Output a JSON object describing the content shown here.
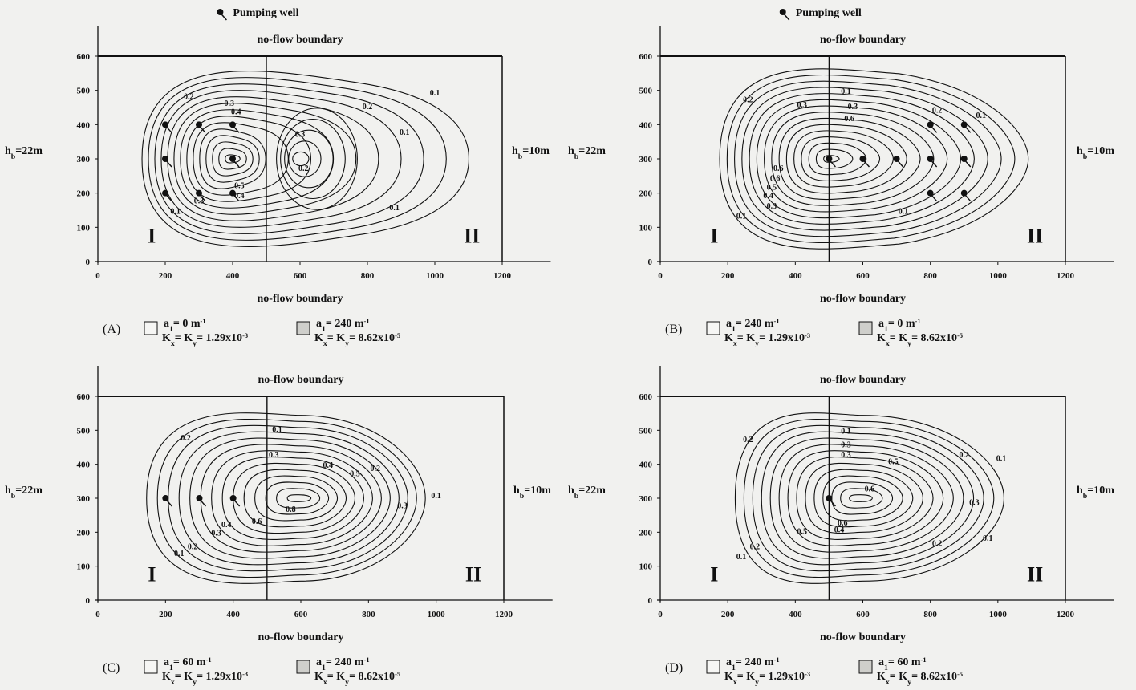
{
  "chart_data": [
    {
      "type": "contour",
      "panel": "(A)",
      "pumping_well_label": "Pumping well",
      "top_boundary": "no-flow boundary",
      "bottom_boundary": "no-flow boundary",
      "left_head": "h",
      "left_head_sub": "b",
      "left_head_val": "=22m",
      "right_head": "h",
      "right_head_sub": "b",
      "right_head_val": "=10m",
      "xlim": [
        0,
        1200
      ],
      "ylim": [
        0,
        600
      ],
      "xticks": [
        0,
        200,
        400,
        600,
        800,
        1000,
        1200
      ],
      "yticks": [
        0,
        100,
        200,
        300,
        400,
        500,
        600
      ],
      "interface_x": 500,
      "zone_labels": [
        "I",
        "II"
      ],
      "wells": [
        [
          200,
          400
        ],
        [
          200,
          300
        ],
        [
          200,
          200
        ],
        [
          300,
          400
        ],
        [
          300,
          200
        ],
        [
          400,
          400
        ],
        [
          400,
          300
        ],
        [
          400,
          200
        ]
      ],
      "centers": [
        {
          "x": 400,
          "y": 300
        },
        {
          "x": 590,
          "y": 300
        }
      ],
      "contour_labels": [
        {
          "x": 270,
          "y": 475,
          "text": "0.2"
        },
        {
          "x": 390,
          "y": 455,
          "text": "0.3"
        },
        {
          "x": 410,
          "y": 430,
          "text": "0.4"
        },
        {
          "x": 1000,
          "y": 485,
          "text": "0.1"
        },
        {
          "x": 800,
          "y": 445,
          "text": "0.2"
        },
        {
          "x": 600,
          "y": 365,
          "text": "0.3"
        },
        {
          "x": 910,
          "y": 370,
          "text": "0.1"
        },
        {
          "x": 610,
          "y": 265,
          "text": "0.2"
        },
        {
          "x": 420,
          "y": 215,
          "text": "0.5"
        },
        {
          "x": 420,
          "y": 185,
          "text": "0.4"
        },
        {
          "x": 300,
          "y": 170,
          "text": "0.3"
        },
        {
          "x": 230,
          "y": 140,
          "text": "0.1"
        },
        {
          "x": 880,
          "y": 150,
          "text": "0.1"
        }
      ],
      "legend": [
        {
          "a": "a",
          "a_sub": "1",
          "a_val": "= 0 m",
          "a_sup": "-1",
          "k": "K",
          "k_sub1": "x",
          "k_mid": "= K",
          "k_sub2": "y",
          "k_val": "= 1.29x10",
          "k_sup": "-3"
        },
        {
          "a": "a",
          "a_sub": "1",
          "a_val": "= 240 m",
          "a_sup": "-1",
          "k": "K",
          "k_sub1": "x",
          "k_mid": "= K",
          "k_sub2": "y",
          "k_val": "= 8.62x10",
          "k_sup": "-5"
        }
      ]
    },
    {
      "type": "contour",
      "panel": "(B)",
      "pumping_well_label": "Pumping well",
      "top_boundary": "no-flow boundary",
      "bottom_boundary": "no-flow boundary",
      "left_head": "h",
      "left_head_sub": "b",
      "left_head_val": "=22m",
      "right_head": "h",
      "right_head_sub": "b",
      "right_head_val": "=10m",
      "xlim": [
        0,
        1200
      ],
      "ylim": [
        0,
        600
      ],
      "xticks": [
        0,
        200,
        400,
        600,
        800,
        1000,
        1200
      ],
      "yticks": [
        0,
        100,
        200,
        300,
        400,
        500,
        600
      ],
      "interface_x": 500,
      "zone_labels": [
        "I",
        "II"
      ],
      "wells": [
        [
          500,
          300
        ],
        [
          600,
          300
        ],
        [
          700,
          300
        ],
        [
          800,
          400
        ],
        [
          800,
          300
        ],
        [
          800,
          200
        ],
        [
          900,
          400
        ],
        [
          900,
          300
        ],
        [
          900,
          200
        ]
      ],
      "centers": [
        {
          "x": 500,
          "y": 300
        }
      ],
      "contour_labels": [
        {
          "x": 260,
          "y": 465,
          "text": "0.2"
        },
        {
          "x": 420,
          "y": 450,
          "text": "0.3"
        },
        {
          "x": 550,
          "y": 490,
          "text": "0.1"
        },
        {
          "x": 570,
          "y": 445,
          "text": "0.3"
        },
        {
          "x": 560,
          "y": 410,
          "text": "0.6"
        },
        {
          "x": 820,
          "y": 435,
          "text": "0.2"
        },
        {
          "x": 950,
          "y": 420,
          "text": "0.1"
        },
        {
          "x": 350,
          "y": 265,
          "text": "0.6"
        },
        {
          "x": 340,
          "y": 235,
          "text": "0.6"
        },
        {
          "x": 330,
          "y": 210,
          "text": "0.5"
        },
        {
          "x": 320,
          "y": 185,
          "text": "0.4"
        },
        {
          "x": 330,
          "y": 155,
          "text": "0.3"
        },
        {
          "x": 240,
          "y": 125,
          "text": "0.1"
        },
        {
          "x": 720,
          "y": 140,
          "text": "0.1"
        }
      ],
      "legend": [
        {
          "a": "a",
          "a_sub": "1",
          "a_val": "= 240 m",
          "a_sup": "-1",
          "k": "K",
          "k_sub1": "x",
          "k_mid": "= K",
          "k_sub2": "y",
          "k_val": "= 1.29x10",
          "k_sup": "-3"
        },
        {
          "a": "a",
          "a_sub": "1",
          "a_val": "= 0 m",
          "a_sup": "-1",
          "k": "K",
          "k_sub1": "x",
          "k_mid": "= K",
          "k_sub2": "y",
          "k_val": "= 8.62x10",
          "k_sup": "-5"
        }
      ]
    },
    {
      "type": "contour",
      "panel": "(C)",
      "top_boundary": "no-flow boundary",
      "bottom_boundary": "no-flow boundary",
      "left_head": "h",
      "left_head_sub": "b",
      "left_head_val": "=22m",
      "right_head": "h",
      "right_head_sub": "b",
      "right_head_val": "=10m",
      "xlim": [
        0,
        1200
      ],
      "ylim": [
        0,
        600
      ],
      "xticks": [
        0,
        200,
        400,
        600,
        800,
        1000,
        1200
      ],
      "yticks": [
        0,
        100,
        200,
        300,
        400,
        500,
        600
      ],
      "interface_x": 500,
      "zone_labels": [
        "I",
        "II"
      ],
      "wells": [
        [
          200,
          300
        ],
        [
          300,
          300
        ],
        [
          400,
          300
        ]
      ],
      "centers": [
        {
          "x": 600,
          "y": 300
        }
      ],
      "contour_labels": [
        {
          "x": 260,
          "y": 470,
          "text": "0.2"
        },
        {
          "x": 530,
          "y": 495,
          "text": "0.1"
        },
        {
          "x": 520,
          "y": 420,
          "text": "0.3"
        },
        {
          "x": 680,
          "y": 390,
          "text": "0.4"
        },
        {
          "x": 760,
          "y": 365,
          "text": "0.5"
        },
        {
          "x": 820,
          "y": 380,
          "text": "0.2"
        },
        {
          "x": 1000,
          "y": 300,
          "text": "0.1"
        },
        {
          "x": 900,
          "y": 270,
          "text": "0.3"
        },
        {
          "x": 570,
          "y": 260,
          "text": "0.8"
        },
        {
          "x": 470,
          "y": 225,
          "text": "0.6"
        },
        {
          "x": 380,
          "y": 215,
          "text": "0.4"
        },
        {
          "x": 350,
          "y": 190,
          "text": "0.3"
        },
        {
          "x": 280,
          "y": 150,
          "text": "0.2"
        },
        {
          "x": 240,
          "y": 130,
          "text": "0.1"
        }
      ],
      "legend": [
        {
          "a": "a",
          "a_sub": "1",
          "a_val": "= 60 m",
          "a_sup": "-1",
          "k": "K",
          "k_sub1": "x",
          "k_mid": "= K",
          "k_sub2": "y",
          "k_val": "= 1.29x10",
          "k_sup": "-3"
        },
        {
          "a": "a",
          "a_sub": "1",
          "a_val": "= 240 m",
          "a_sup": "-1",
          "k": "K",
          "k_sub1": "x",
          "k_mid": "= K",
          "k_sub2": "y",
          "k_val": "= 8.62x10",
          "k_sup": "-5"
        }
      ]
    },
    {
      "type": "contour",
      "panel": "(D)",
      "top_boundary": "no-flow boundary",
      "bottom_boundary": "no-flow boundary",
      "left_head": "h",
      "left_head_sub": "b",
      "left_head_val": "=22m",
      "right_head": "h",
      "right_head_sub": "b",
      "right_head_val": "=10m",
      "xlim": [
        0,
        1200
      ],
      "ylim": [
        0,
        600
      ],
      "xticks": [
        0,
        200,
        400,
        600,
        800,
        1000,
        1200
      ],
      "yticks": [
        0,
        100,
        200,
        300,
        400,
        500,
        600
      ],
      "interface_x": 500,
      "zone_labels": [
        "I",
        "II"
      ],
      "wells": [
        [
          500,
          300
        ]
      ],
      "centers": [
        {
          "x": 600,
          "y": 300
        }
      ],
      "contour_labels": [
        {
          "x": 260,
          "y": 465,
          "text": "0.2"
        },
        {
          "x": 550,
          "y": 490,
          "text": "0.1"
        },
        {
          "x": 550,
          "y": 450,
          "text": "0.3"
        },
        {
          "x": 550,
          "y": 420,
          "text": "0.3"
        },
        {
          "x": 690,
          "y": 400,
          "text": "0.5"
        },
        {
          "x": 900,
          "y": 420,
          "text": "0.2"
        },
        {
          "x": 1010,
          "y": 410,
          "text": "0.1"
        },
        {
          "x": 620,
          "y": 320,
          "text": "0.6"
        },
        {
          "x": 930,
          "y": 280,
          "text": "0.3"
        },
        {
          "x": 540,
          "y": 220,
          "text": "0.6"
        },
        {
          "x": 530,
          "y": 200,
          "text": "0.4"
        },
        {
          "x": 420,
          "y": 195,
          "text": "0.5"
        },
        {
          "x": 280,
          "y": 150,
          "text": "0.2"
        },
        {
          "x": 240,
          "y": 120,
          "text": "0.1"
        },
        {
          "x": 820,
          "y": 160,
          "text": "0.2"
        },
        {
          "x": 970,
          "y": 175,
          "text": "0.1"
        }
      ],
      "legend": [
        {
          "a": "a",
          "a_sub": "1",
          "a_val": "= 240 m",
          "a_sup": "-1",
          "k": "K",
          "k_sub1": "x",
          "k_mid": "= K",
          "k_sub2": "y",
          "k_val": "= 1.29x10",
          "k_sup": "-3"
        },
        {
          "a": "a",
          "a_sub": "1",
          "a_val": "= 60 m",
          "a_sup": "-1",
          "k": "K",
          "k_sub1": "x",
          "k_mid": "= K",
          "k_sub2": "y",
          "k_val": "= 8.62x10",
          "k_sup": "-5"
        }
      ]
    }
  ]
}
